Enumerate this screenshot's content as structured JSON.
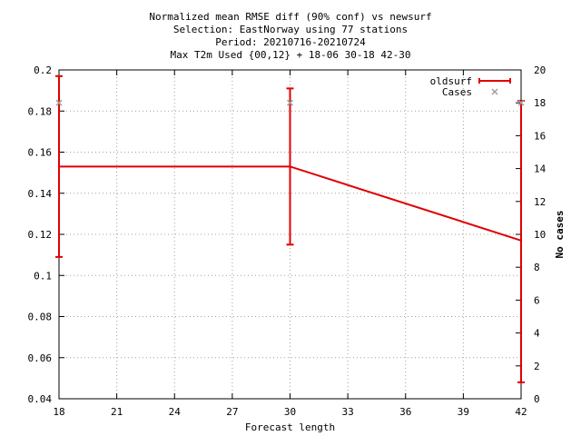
{
  "chart_data": {
    "type": "line",
    "title_lines": [
      "Normalized mean RMSE diff (90% conf) vs newsurf",
      "Selection: EastNorway using    77 stations",
      "Period: 20210716-20210724",
      "Max T2m   Used {00,12} + 18-06 30-18 42-30"
    ],
    "xlabel": "Forecast length",
    "ylabel": "",
    "y2label": "No cases",
    "xlim": [
      18,
      42
    ],
    "ylim": [
      0.04,
      0.2
    ],
    "y2lim": [
      0,
      20
    ],
    "xticks": [
      18,
      21,
      24,
      27,
      30,
      33,
      36,
      39,
      42
    ],
    "yticks": [
      "0.04",
      "0.06",
      "0.08",
      "0.1",
      "0.12",
      "0.14",
      "0.16",
      "0.18",
      "0.2"
    ],
    "y2ticks": [
      0,
      2,
      4,
      6,
      8,
      10,
      12,
      14,
      16,
      18,
      20
    ],
    "grid": true,
    "legend_position": "top-right",
    "series": [
      {
        "name": "oldsurf",
        "color": "#e00000",
        "axis": "y1",
        "x": [
          18,
          30,
          42
        ],
        "y": [
          0.153,
          0.153,
          0.117
        ],
        "err_low": [
          0.109,
          0.115,
          0.048
        ],
        "err_high": [
          0.197,
          0.191,
          0.185
        ]
      },
      {
        "name": "Cases",
        "color": "#a0a0a0",
        "axis": "y2",
        "x": [
          18,
          30,
          42
        ],
        "y": [
          18,
          18,
          18
        ]
      }
    ]
  }
}
